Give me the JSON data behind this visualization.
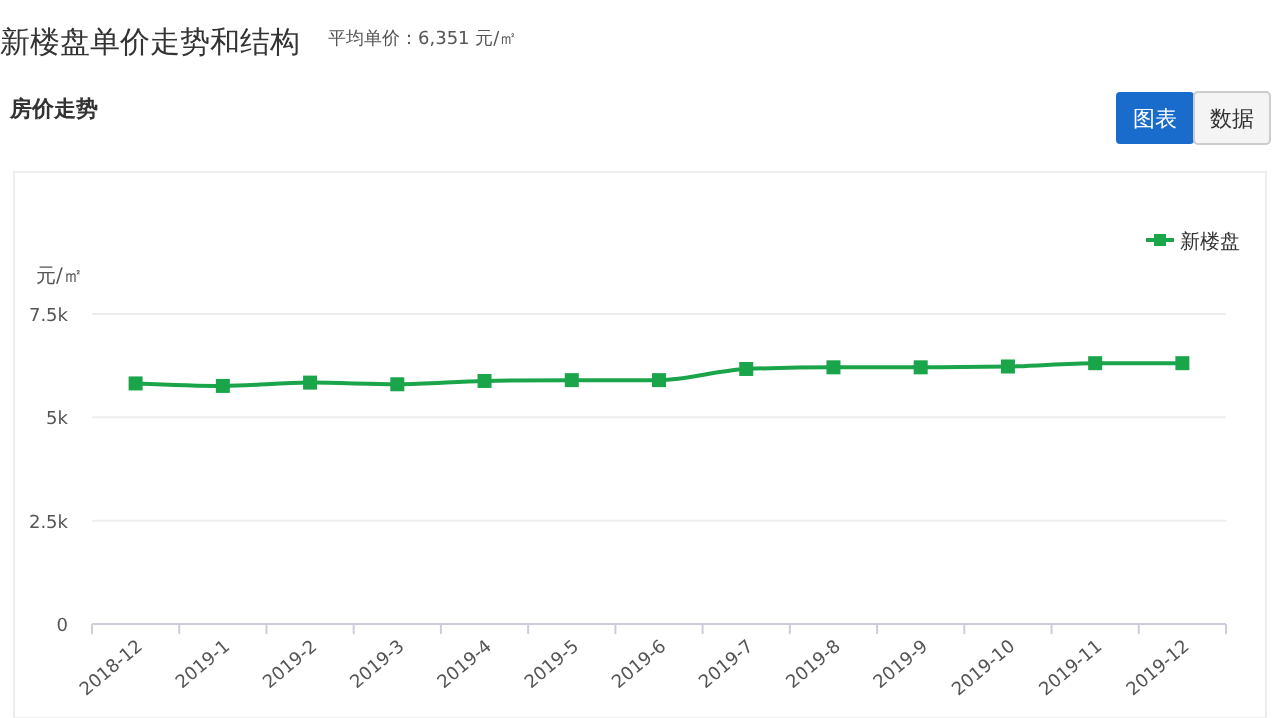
{
  "chart_data": {
    "type": "line",
    "title": "新楼盘单价走势和结构",
    "subtitle": "平均单价：6,351 元/㎡",
    "annotations": [
      "房价走势",
      "图表",
      "数据"
    ],
    "ylabel": "元/㎡",
    "categories": [
      "2018-12",
      "2019-1",
      "2019-2",
      "2019-3",
      "2019-4",
      "2019-5",
      "2019-6",
      "2019-7",
      "2019-8",
      "2019-9",
      "2019-10",
      "2019-11",
      "2019-12"
    ],
    "series": [
      {
        "name": "新楼盘",
        "color": "#1aa54a",
        "values": [
          5820,
          5760,
          5840,
          5800,
          5880,
          5900,
          5900,
          6170,
          6210,
          6210,
          6230,
          6310,
          6310
        ]
      }
    ],
    "ylim": [
      0,
      7500
    ],
    "yticks": [
      0,
      {
        "value": 2500,
        "label": "2.5k"
      },
      {
        "value": 5000,
        "label": "5k"
      },
      {
        "value": 7500,
        "label": "7.5k"
      }
    ],
    "grid": "y",
    "legend": "top right",
    "marker": "square",
    "line_style": "solid"
  }
}
